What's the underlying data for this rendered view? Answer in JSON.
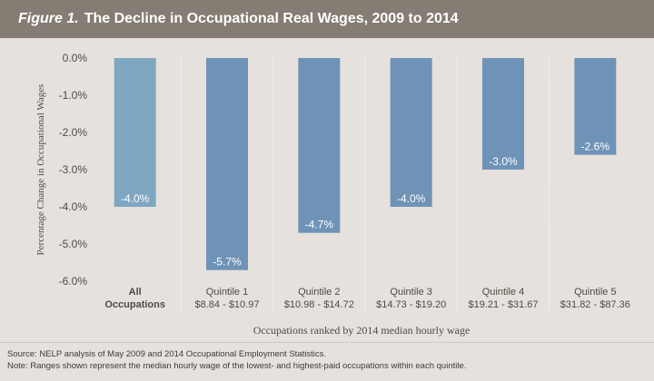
{
  "figure": {
    "label": "Figure 1.",
    "title": "The Decline in Occupational Real Wages, 2009 to 2014"
  },
  "footer": {
    "source": "Source: NELP analysis of May 2009 and 2014 Occupational Employment Statistics.",
    "note": "Note: Ranges shown represent the median hourly wage of the lowest- and highest-paid occupations within each quintile."
  },
  "chart_data": {
    "type": "bar",
    "categories": [
      "All Occupations",
      "Quintile 1",
      "Quintile 2",
      "Quintile 3",
      "Quintile 4",
      "Quintile 5"
    ],
    "category_lines": [
      [
        "All",
        "Occupations"
      ],
      [
        "Quintile 1",
        "$8.84 - $10.97"
      ],
      [
        "Quintile 2",
        "$10.98 - $14.72"
      ],
      [
        "Quintile 3",
        "$14.73 - $19.20"
      ],
      [
        "Quintile 4",
        "$19.21 - $31.67"
      ],
      [
        "Quintile 5",
        "$31.82 - $87.36"
      ]
    ],
    "values": [
      -4.0,
      -5.7,
      -4.7,
      -4.0,
      -3.0,
      -2.6
    ],
    "value_labels": [
      "-4.0%",
      "-5.7%",
      "-4.7%",
      "-4.0%",
      "-3.0%",
      "-2.6%"
    ],
    "yticks": [
      0,
      -1,
      -2,
      -3,
      -4,
      -5,
      -6
    ],
    "ytick_labels": [
      "0.0%",
      "-1.0%",
      "-2.0%",
      "-3.0%",
      "-4.0%",
      "-5.0%",
      "-6.0%"
    ],
    "ylim": [
      -6,
      0
    ],
    "xlabel": "Occupations ranked by 2014 median hourly wage",
    "ylabel": "Percentage Change in Occupational Wages",
    "colors": {
      "all_bar": "#7fa7c2",
      "quintile_bar": "#6e93b7",
      "bar_label": "#ffffff",
      "axis_text": "#4f4a45",
      "divider": "#ffffff"
    }
  }
}
